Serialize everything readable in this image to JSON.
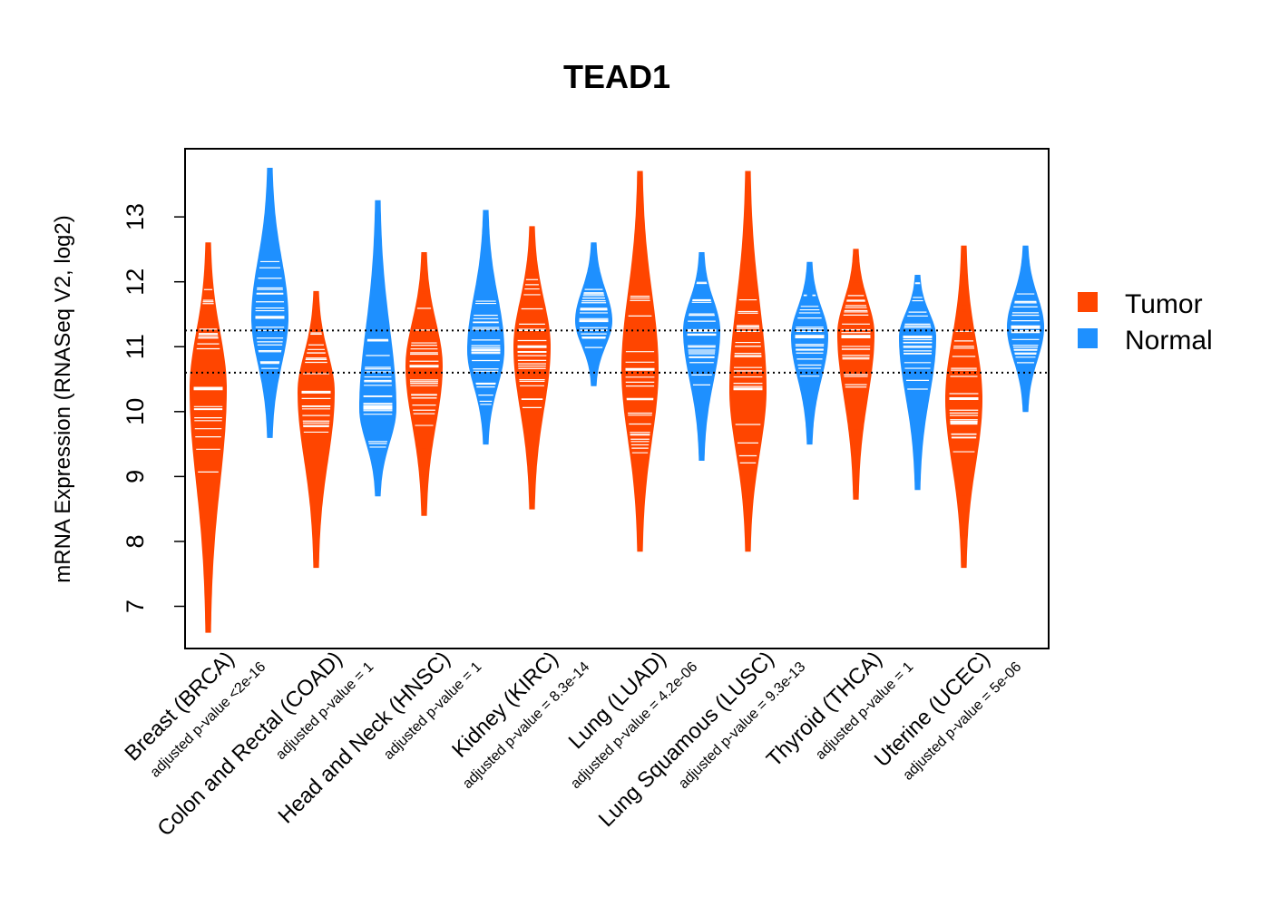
{
  "chart_data": {
    "type": "violin",
    "title": "TEAD1",
    "ylabel": "mRNA Expression (RNASeq V2, log2)",
    "xlabel": "",
    "ylim": [
      6.35,
      14.05
    ],
    "yticks": [
      7,
      8,
      9,
      10,
      11,
      12,
      13
    ],
    "reference_lines": [
      11.25,
      10.6
    ],
    "legend": {
      "position": "right",
      "entries": [
        {
          "name": "Tumor",
          "color": "#FF4500"
        },
        {
          "name": "Normal",
          "color": "#1E90FF"
        }
      ]
    },
    "categories": [
      {
        "name": "Breast (BRCA)",
        "pvalue": "adjusted p-value <2e-16",
        "tumor": {
          "median": 10.35,
          "min": 6.6,
          "max": 12.6,
          "peak": 10.35
        },
        "normal": {
          "median": 11.45,
          "min": 9.6,
          "max": 13.75,
          "peak": 11.45
        }
      },
      {
        "name": "Colon and Rectal (COAD)",
        "pvalue": "adjusted p-value = 1",
        "tumor": {
          "median": 10.3,
          "min": 7.6,
          "max": 11.85,
          "peak": 10.3
        },
        "normal": {
          "median": 10.05,
          "min": 8.7,
          "max": 13.25,
          "peak": 10.05
        }
      },
      {
        "name": "Head and Neck (HNSC)",
        "pvalue": "adjusted p-value = 1",
        "tumor": {
          "median": 10.7,
          "min": 8.4,
          "max": 12.45,
          "peak": 10.7
        },
        "normal": {
          "median": 10.95,
          "min": 9.5,
          "max": 13.1,
          "peak": 10.95
        }
      },
      {
        "name": "Kidney (KIRC)",
        "pvalue": "adjusted p-value = 8.3e-14",
        "tumor": {
          "median": 11.0,
          "min": 8.5,
          "max": 12.85,
          "peak": 11.0
        },
        "normal": {
          "median": 11.4,
          "min": 10.4,
          "max": 12.6,
          "peak": 11.4
        }
      },
      {
        "name": "Lung (LUAD)",
        "pvalue": "adjusted p-value = 4.2e-06",
        "tumor": {
          "median": 10.65,
          "min": 7.85,
          "max": 13.7,
          "peak": 10.65
        },
        "normal": {
          "median": 11.25,
          "min": 9.25,
          "max": 12.45,
          "peak": 11.25
        }
      },
      {
        "name": "Lung Squamous (LUSC)",
        "pvalue": "adjusted p-value = 9.3e-13",
        "tumor": {
          "median": 10.35,
          "min": 7.85,
          "max": 13.7,
          "peak": 10.35
        },
        "normal": {
          "median": 11.15,
          "min": 9.5,
          "max": 12.3,
          "peak": 11.15
        }
      },
      {
        "name": "Thyroid (THCA)",
        "pvalue": "adjusted p-value = 1",
        "tumor": {
          "median": 11.15,
          "min": 8.65,
          "max": 12.5,
          "peak": 11.2
        },
        "normal": {
          "median": 11.15,
          "min": 8.8,
          "max": 12.1,
          "peak": 11.15
        }
      },
      {
        "name": "Uterine (UCEC)",
        "pvalue": "adjusted p-value = 5e-06",
        "tumor": {
          "median": 10.2,
          "min": 7.6,
          "max": 12.55,
          "peak": 10.2
        },
        "normal": {
          "median": 11.3,
          "min": 10.0,
          "max": 12.55,
          "peak": 11.3
        }
      }
    ]
  }
}
